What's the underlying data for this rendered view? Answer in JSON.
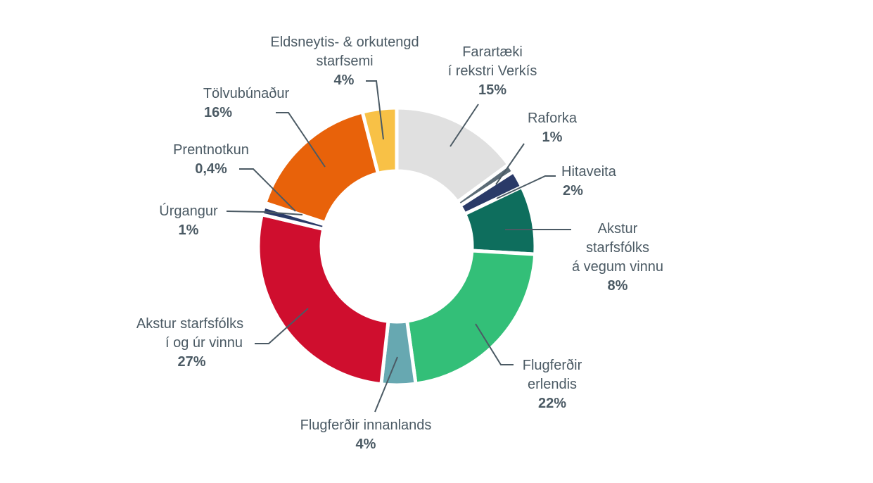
{
  "chart_data": {
    "type": "pie",
    "variant": "donut",
    "title": "",
    "start": "top",
    "direction": "clockwise",
    "slices": [
      {
        "label": [
          "Farartæki",
          "í rekstri Verkís"
        ],
        "value": 15,
        "pct_label": "15%",
        "color": "#e0e0e0"
      },
      {
        "label": [
          "Raforka"
        ],
        "value": 1,
        "pct_label": "1%",
        "color": "#5b6b76"
      },
      {
        "label": [
          "Hitaveita"
        ],
        "value": 2,
        "pct_label": "2%",
        "color": "#2a3a68"
      },
      {
        "label": [
          "Akstur",
          "starfsfólks",
          "á vegum vinnu"
        ],
        "value": 8,
        "pct_label": "8%",
        "color": "#0e6e5d"
      },
      {
        "label": [
          "Flugferðir",
          "erlendis"
        ],
        "value": 22,
        "pct_label": "22%",
        "color": "#33bf78"
      },
      {
        "label": [
          "Flugferðir innanlands"
        ],
        "value": 4,
        "pct_label": "4%",
        "color": "#67a8b1"
      },
      {
        "label": [
          "Akstur starfsfólks",
          "í og úr vinnu"
        ],
        "value": 27,
        "pct_label": "27%",
        "color": "#cf0e2e"
      },
      {
        "label": [
          "Úrgangur"
        ],
        "value": 1,
        "pct_label": "1%",
        "color": "#2a3a68"
      },
      {
        "label": [
          "Prentnotkun"
        ],
        "value": 0.4,
        "pct_label": "0,4%",
        "color": "#a3282c"
      },
      {
        "label": [
          "Tölvubúnaður"
        ],
        "value": 16,
        "pct_label": "16%",
        "color": "#e8620a"
      },
      {
        "label": [
          "Eldsneytis- & orkutengd",
          "starfsemi"
        ],
        "value": 4,
        "pct_label": "4%",
        "color": "#f8c146"
      }
    ],
    "leader_color": "#4b5a64"
  }
}
